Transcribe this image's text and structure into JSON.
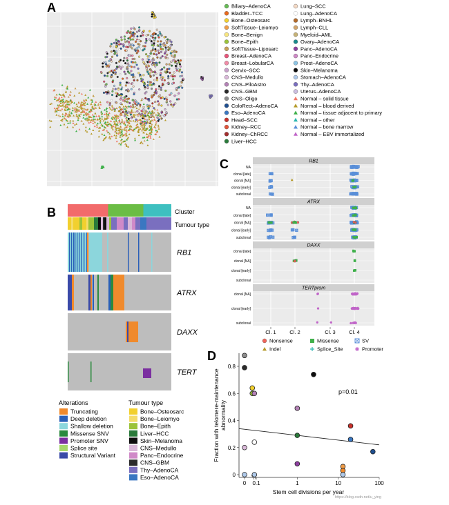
{
  "panels": {
    "a": {
      "letter": "A",
      "legend": [
        {
          "label": "Biliary–AdenoCA",
          "color": "#66bb55",
          "marker": "circle"
        },
        {
          "label": "Bladder–TCC",
          "color": "#e86a1f",
          "marker": "circle"
        },
        {
          "label": "Bone–Osteosarc",
          "color": "#f2d02e",
          "marker": "circle"
        },
        {
          "label": "SoftTissue–Leiomyo",
          "color": "#ee9c48",
          "marker": "circle"
        },
        {
          "label": "Bone–Benign",
          "color": "#f7e57d",
          "marker": "circle"
        },
        {
          "label": "Bone–Epith",
          "color": "#9bc33a",
          "marker": "circle"
        },
        {
          "label": "SoftTissue–Liposarc",
          "color": "#c8a05a",
          "marker": "circle"
        },
        {
          "label": "Breast–AdenoCA",
          "color": "#e9557a",
          "marker": "circle"
        },
        {
          "label": "Breast–LobularCA",
          "color": "#f08ba6",
          "marker": "circle"
        },
        {
          "label": "Cervix–SCC",
          "color": "#c7a0c9",
          "marker": "circle"
        },
        {
          "label": "CNS–Medullo",
          "color": "#d9b8d8",
          "marker": "circle"
        },
        {
          "label": "CNS–PiloAstro",
          "color": "#b482b6",
          "marker": "circle"
        },
        {
          "label": "CNS–GBM",
          "color": "#2b2b2b",
          "marker": "circle"
        },
        {
          "label": "CNS–Oligo",
          "color": "#8c8c8c",
          "marker": "circle"
        },
        {
          "label": "ColoRect–AdenoCA",
          "color": "#1f4f8f",
          "marker": "circle"
        },
        {
          "label": "Eso–AdenoCA",
          "color": "#3a77c1",
          "marker": "circle"
        },
        {
          "label": "Head–SCC",
          "color": "#c8312b",
          "marker": "circle"
        },
        {
          "label": "Kidney–RCC",
          "color": "#e2543a",
          "marker": "circle"
        },
        {
          "label": "Kidney–ChRCC",
          "color": "#a12e2e",
          "marker": "circle"
        },
        {
          "label": "Liver–HCC",
          "color": "#2a7a3a",
          "marker": "circle"
        },
        {
          "label": "Lung–SCC",
          "color": "#f4d9c4",
          "marker": "circle"
        },
        {
          "label": "Lung–AdenoCA",
          "color": "#ffffff",
          "marker": "circle"
        },
        {
          "label": "Lymph–BNHL",
          "color": "#b36a2a",
          "marker": "circle"
        },
        {
          "label": "Lymph–CLL",
          "color": "#d2a56c",
          "marker": "circle"
        },
        {
          "label": "Myeloid–AML",
          "color": "#c6b276",
          "marker": "circle"
        },
        {
          "label": "Ovary–AdenoCA",
          "color": "#1a8a8c",
          "marker": "circle"
        },
        {
          "label": "Panc–AdenoCA",
          "color": "#8e3fa0",
          "marker": "circle"
        },
        {
          "label": "Panc–Endocrine",
          "color": "#d08ac8",
          "marker": "circle"
        },
        {
          "label": "Prost–AdenoCA",
          "color": "#8dc4e4",
          "marker": "circle"
        },
        {
          "label": "Skin–Melanoma",
          "color": "#0d0d0d",
          "marker": "circle"
        },
        {
          "label": "Stomach–AdenoCA",
          "color": "#aec9ea",
          "marker": "circle"
        },
        {
          "label": "Thy–AdenoCA",
          "color": "#7a6fbf",
          "marker": "circle"
        },
        {
          "label": "Uterus–AdenoCA",
          "color": "#ccbde0",
          "marker": "circle"
        },
        {
          "label": "Normal – solid tissue",
          "color": "#f07a6a",
          "marker": "triangle"
        },
        {
          "label": "Normal – blood derived",
          "color": "#b59a2a",
          "marker": "triangle"
        },
        {
          "label": "Normal – tissue adjacent to primary",
          "color": "#3fb04a",
          "marker": "triangle"
        },
        {
          "label": "Normal – other",
          "color": "#2ab7b0",
          "marker": "triangle"
        },
        {
          "label": "Normal – bone marrow",
          "color": "#5a8fd8",
          "marker": "triangle"
        },
        {
          "label": "Normal – EBV immortalized",
          "color": "#c065c8",
          "marker": "triangle"
        }
      ]
    },
    "b": {
      "letter": "B",
      "track_labels": {
        "cluster": "Cluster",
        "tumour_type": "Tumour type"
      },
      "cluster_colors": [
        "#f26b6b",
        "#6bbd45",
        "#3ec0c0"
      ],
      "rows": [
        {
          "gene": "RB1"
        },
        {
          "gene": "ATRX"
        },
        {
          "gene": "DAXX"
        },
        {
          "gene": "TERT"
        }
      ],
      "alterations_title": "Alterations",
      "alterations": [
        {
          "label": "Truncating",
          "color": "#f08a2c"
        },
        {
          "label": "Deep deletion",
          "color": "#2a5fb8"
        },
        {
          "label": "Shallow deletion",
          "color": "#8cd6dc"
        },
        {
          "label": "Missense SNV",
          "color": "#2b8a3e"
        },
        {
          "label": "Promoter SNV",
          "color": "#7b2fa0"
        },
        {
          "label": "Splice site",
          "color": "#a7d86b"
        },
        {
          "label": "Structural Variant",
          "color": "#3a4aa8"
        }
      ],
      "tumour_title": "Tumour type",
      "tumour_types": [
        {
          "label": "Bone–Osteosarc",
          "color": "#f2d02e"
        },
        {
          "label": "Bone–Leiomyo",
          "color": "#f4dc6a"
        },
        {
          "label": "Bone–Epith",
          "color": "#9bc33a"
        },
        {
          "label": "Liver–HCC",
          "color": "#2a7a3a"
        },
        {
          "label": "Skin–Melanoma",
          "color": "#0d0d0d"
        },
        {
          "label": "CNS–Medullo",
          "color": "#d9b8d8"
        },
        {
          "label": "Panc–Endocrine",
          "color": "#d08ac8"
        },
        {
          "label": "CNS–GBM",
          "color": "#2b2b2b"
        },
        {
          "label": "Thy–AdenoCA",
          "color": "#7a6fbf"
        },
        {
          "label": "Eso–AdenoCA",
          "color": "#3a77c1"
        }
      ]
    },
    "c": {
      "letter": "C",
      "facets": [
        {
          "title": "RB1",
          "rows": [
            "NA",
            "clonal [late]",
            "clonal [NA]",
            "clonal [early]",
            "subclonal"
          ]
        },
        {
          "title": "ATRX",
          "rows": [
            "NA",
            "clonal [late]",
            "clonal [NA]",
            "clonal [early]",
            "subclonal"
          ]
        },
        {
          "title": "DAXX",
          "rows": [
            "clonal [late]",
            "clonal [NA]",
            "clonal [early]",
            "subclonal"
          ]
        },
        {
          "title": "TERTprom",
          "rows": [
            "clonal [NA]",
            "clonal [early]",
            "subclonal"
          ]
        }
      ],
      "x_ticks": [
        "Cl. 1",
        "Cl. 2",
        "Cl. 3",
        "Cl. 4"
      ],
      "legend": [
        {
          "label": "Nonsense",
          "color": "#f0645a",
          "marker": "circle"
        },
        {
          "label": "Missense",
          "color": "#3fb04a",
          "marker": "square"
        },
        {
          "label": "SV",
          "color": "#5a8fd8",
          "marker": "xsquare"
        },
        {
          "label": "Indel",
          "color": "#b59a2a",
          "marker": "triangle"
        },
        {
          "label": "Splice_Site",
          "color": "#2ab7b0",
          "marker": "plus"
        },
        {
          "label": "Promoter",
          "color": "#c065c8",
          "marker": "star"
        }
      ]
    },
    "d": {
      "letter": "D",
      "annotation": "p=0.01",
      "chart_data": {
        "type": "scatter",
        "xlabel": "Stem cell divisions per year",
        "ylabel": "Fraction with telomere-maintenance abnormality",
        "x_ticks": [
          "0",
          "0.1",
          "1",
          "10",
          "100"
        ],
        "y_ticks": [
          "0",
          "0.2",
          "0.4",
          "0.6",
          "0.8"
        ],
        "ylim": [
          0,
          0.9
        ],
        "points": [
          {
            "x": 0,
            "y": 0.88,
            "color": "#8c8c8c"
          },
          {
            "x": 0,
            "y": 0.79,
            "color": "#2b2b2b"
          },
          {
            "x": 0,
            "y": 0.2,
            "color": "#d9b8d8"
          },
          {
            "x": 0,
            "y": 0,
            "color": "#aec9ea"
          },
          {
            "x": 0.08,
            "y": 0.64,
            "color": "#f2d02e"
          },
          {
            "x": 0.08,
            "y": 0.6,
            "color": "#9bc33a"
          },
          {
            "x": 0.09,
            "y": 0.6,
            "color": "#b482b6"
          },
          {
            "x": 0.09,
            "y": 0.24,
            "color": "#ffffff"
          },
          {
            "x": 0.09,
            "y": 0,
            "color": "#aec9ea"
          },
          {
            "x": 1,
            "y": 0.49,
            "color": "#b482b6"
          },
          {
            "x": 1,
            "y": 0.29,
            "color": "#2a7a3a"
          },
          {
            "x": 1,
            "y": 0.08,
            "color": "#8e3fa0"
          },
          {
            "x": 2.5,
            "y": 0.74,
            "color": "#0d0d0d"
          },
          {
            "x": 13,
            "y": 0.06,
            "color": "#ee9c48"
          },
          {
            "x": 13,
            "y": 0.03,
            "color": "#f08a2c"
          },
          {
            "x": 13,
            "y": 0,
            "color": "#aec9ea"
          },
          {
            "x": 20,
            "y": 0.36,
            "color": "#c8312b"
          },
          {
            "x": 20,
            "y": 0.26,
            "color": "#3a77c1"
          },
          {
            "x": 70,
            "y": 0.17,
            "color": "#1f4f8f"
          }
        ],
        "fit_line": {
          "y_start": 0.34,
          "y_end": 0.22
        }
      }
    },
    "footer": {
      "watermark": "https://blog.csdn.net/u_ying"
    }
  }
}
